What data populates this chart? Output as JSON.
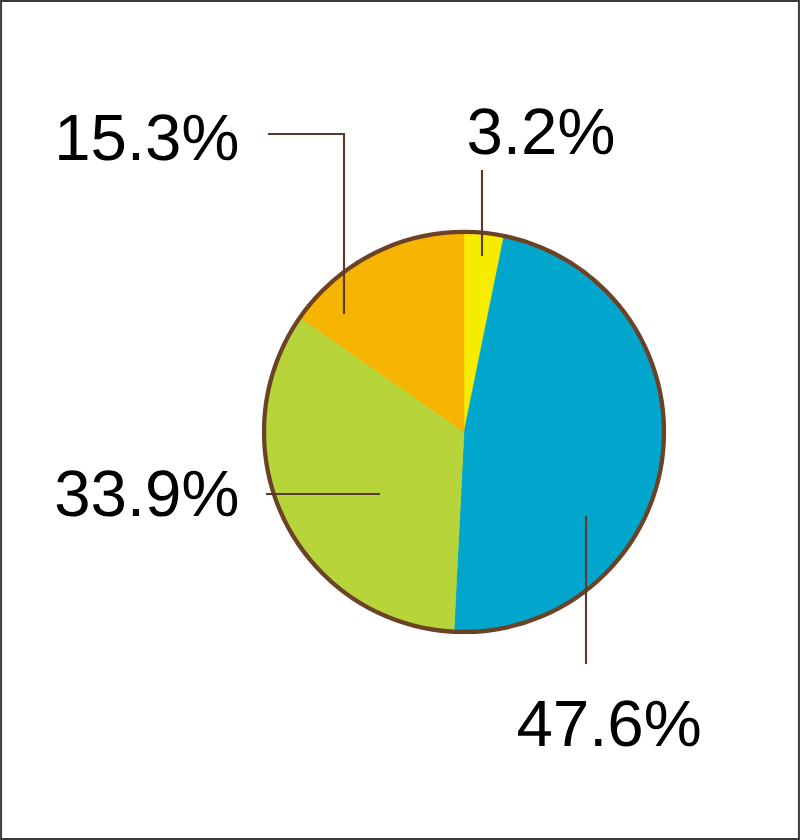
{
  "chart_data": {
    "type": "pie",
    "categories": [
      null,
      null,
      null,
      null
    ],
    "values": [
      3.2,
      47.6,
      33.9,
      15.3
    ],
    "colors": [
      "#f6ec00",
      "#00a6cb",
      "#b7d43b",
      "#f4b400"
    ],
    "value_labels": [
      "3.2%",
      "47.6%",
      "33.9%",
      "15.3%"
    ]
  }
}
